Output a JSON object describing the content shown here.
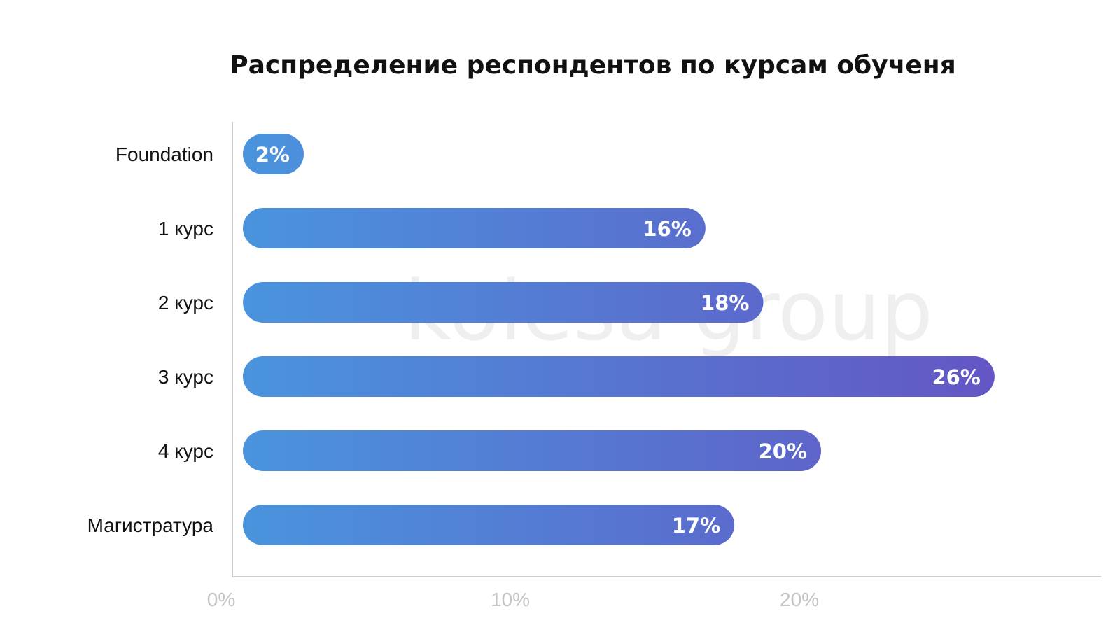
{
  "colors": {
    "bar_start": "#4a94dd",
    "bar_end": "#6650c2",
    "axis": "#cccccc",
    "tick": "#c4c4c4",
    "text": "#111111"
  },
  "watermark": "kolesa group",
  "chart_data": {
    "type": "bar",
    "orientation": "horizontal",
    "title": "Распределение респондентов по курсам обученя",
    "xlabel": "",
    "ylabel": "",
    "categories": [
      "Foundation",
      "1 курс",
      "2 курс",
      "3 курс",
      "4 курс",
      "Магистратура"
    ],
    "values": [
      2,
      16,
      18,
      26,
      20,
      17
    ],
    "data_labels": [
      "2%",
      "16%",
      "18%",
      "26%",
      "20%",
      "17%"
    ],
    "x_ticks": [
      0,
      10,
      20
    ],
    "x_tick_labels": [
      "0%",
      "10%",
      "20%"
    ],
    "xlim": [
      0,
      28.4
    ],
    "grid": false,
    "legend": "none"
  }
}
